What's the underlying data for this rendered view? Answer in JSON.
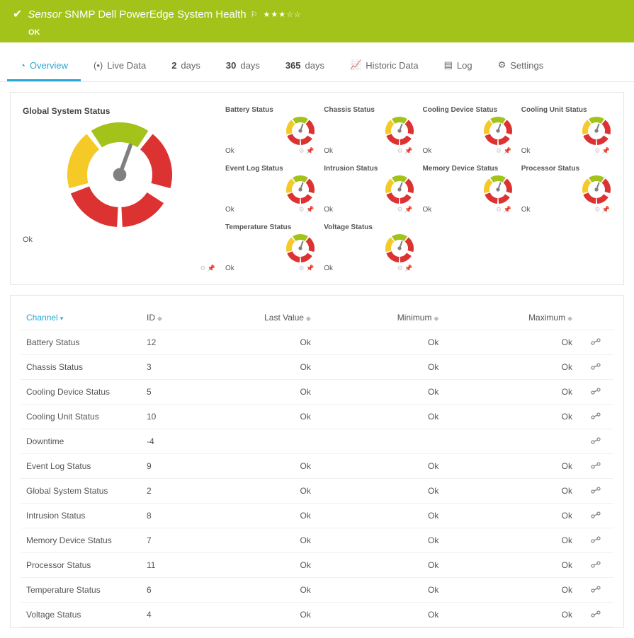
{
  "header": {
    "sensor_label": "Sensor",
    "sensor_name": "SNMP Dell PowerEdge System Health",
    "status": "OK",
    "stars_filled": 3,
    "stars_empty": 2
  },
  "tabs": {
    "overview": "Overview",
    "live": "Live Data",
    "d2_n": "2",
    "d2_l": "days",
    "d30_n": "30",
    "d30_l": "days",
    "d365_n": "365",
    "d365_l": "days",
    "historic": "Historic Data",
    "log": "Log",
    "settings": "Settings"
  },
  "gauge_colors": {
    "red": "#dc3232",
    "yellow": "#f5c926",
    "green": "#a3c21a",
    "bg": "#ffffff",
    "needle": "#808080"
  },
  "big_gauge": {
    "title": "Global System Status",
    "value_label": "Ok"
  },
  "small_gauges": [
    [
      {
        "title": "Battery Status",
        "value": "Ok"
      },
      {
        "title": "Chassis Status",
        "value": "Ok"
      },
      {
        "title": "Cooling Device Status",
        "value": "Ok"
      },
      {
        "title": "Cooling Unit Status",
        "value": "Ok"
      }
    ],
    [
      {
        "title": "Event Log Status",
        "value": "Ok"
      },
      {
        "title": "Intrusion Status",
        "value": "Ok"
      },
      {
        "title": "Memory Device Status",
        "value": "Ok"
      },
      {
        "title": "Processor Status",
        "value": "Ok"
      }
    ],
    [
      {
        "title": "Temperature Status",
        "value": "Ok"
      },
      {
        "title": "Voltage Status",
        "value": "Ok"
      }
    ]
  ],
  "table": {
    "headers": {
      "channel": "Channel",
      "id": "ID",
      "last": "Last Value",
      "min": "Minimum",
      "max": "Maximum"
    },
    "rows": [
      {
        "channel": "Battery Status",
        "id": "12",
        "last": "Ok",
        "min": "Ok",
        "max": "Ok"
      },
      {
        "channel": "Chassis Status",
        "id": "3",
        "last": "Ok",
        "min": "Ok",
        "max": "Ok"
      },
      {
        "channel": "Cooling Device Status",
        "id": "5",
        "last": "Ok",
        "min": "Ok",
        "max": "Ok"
      },
      {
        "channel": "Cooling Unit Status",
        "id": "10",
        "last": "Ok",
        "min": "Ok",
        "max": "Ok"
      },
      {
        "channel": "Downtime",
        "id": "-4",
        "last": "",
        "min": "",
        "max": ""
      },
      {
        "channel": "Event Log Status",
        "id": "9",
        "last": "Ok",
        "min": "Ok",
        "max": "Ok"
      },
      {
        "channel": "Global System Status",
        "id": "2",
        "last": "Ok",
        "min": "Ok",
        "max": "Ok"
      },
      {
        "channel": "Intrusion Status",
        "id": "8",
        "last": "Ok",
        "min": "Ok",
        "max": "Ok"
      },
      {
        "channel": "Memory Device Status",
        "id": "7",
        "last": "Ok",
        "min": "Ok",
        "max": "Ok"
      },
      {
        "channel": "Processor Status",
        "id": "11",
        "last": "Ok",
        "min": "Ok",
        "max": "Ok"
      },
      {
        "channel": "Temperature Status",
        "id": "6",
        "last": "Ok",
        "min": "Ok",
        "max": "Ok"
      },
      {
        "channel": "Voltage Status",
        "id": "4",
        "last": "Ok",
        "min": "Ok",
        "max": "Ok"
      }
    ]
  }
}
